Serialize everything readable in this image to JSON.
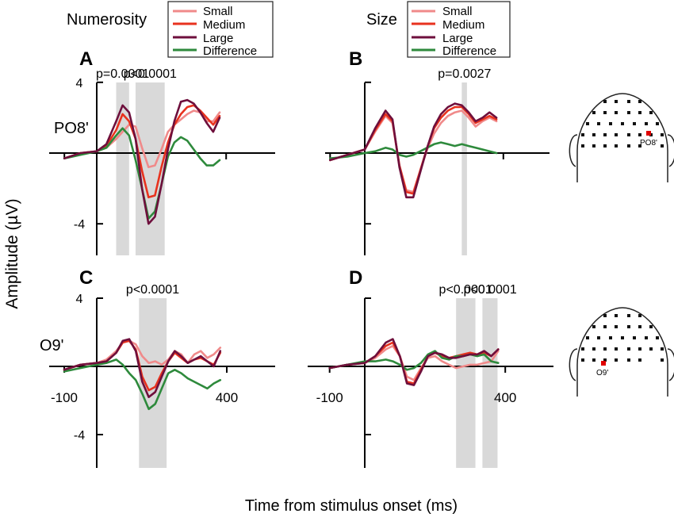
{
  "figure": {
    "ylabel": "Amplitude (µV)",
    "xlabel": "Time from stimulus onset (ms)",
    "row_labels": [
      "PO8'",
      "O9'"
    ],
    "legend_numerosity": {
      "title": "Numerosity",
      "entries": [
        "Small",
        "Medium",
        "Large",
        "Difference"
      ]
    },
    "legend_size": {
      "title": "Size",
      "entries": [
        "Small",
        "Medium",
        "Large",
        "Difference"
      ]
    },
    "colors": {
      "Small": "#f08a8a",
      "Medium": "#e8321e",
      "Large": "#6e0f3c",
      "Difference": "#2e8a3c",
      "shade": "#d9d9d9"
    },
    "head_labels": [
      "PO8'",
      "O9'"
    ]
  },
  "chart_data": [
    {
      "type": "line",
      "panel": "A",
      "electrode": "PO8'",
      "condition": "Numerosity",
      "xlim": [
        -100,
        400
      ],
      "ylim": [
        -6,
        4
      ],
      "yticks": [
        4,
        -4
      ],
      "xticks": [],
      "shaded_intervals": [
        [
          60,
          100
        ],
        [
          120,
          210
        ]
      ],
      "annotations": [
        {
          "text": "p=0.0001",
          "x": 80
        },
        {
          "text": "p<0.0001",
          "x": 165
        }
      ],
      "series": [
        {
          "name": "Small",
          "x": [
            -100,
            -50,
            0,
            30,
            60,
            80,
            100,
            120,
            140,
            160,
            180,
            200,
            220,
            240,
            260,
            280,
            300,
            320,
            340,
            360,
            380
          ],
          "y": [
            -0.3,
            0,
            0.1,
            0.3,
            0.8,
            1.2,
            1.6,
            1.5,
            0.3,
            -0.8,
            -0.7,
            0.2,
            1.2,
            1.6,
            1.9,
            2.2,
            2.4,
            2.3,
            1.8,
            1.8,
            2.3
          ]
        },
        {
          "name": "Medium",
          "x": [
            -100,
            -50,
            0,
            30,
            60,
            80,
            100,
            120,
            140,
            160,
            180,
            200,
            220,
            240,
            260,
            280,
            300,
            320,
            340,
            360,
            380
          ],
          "y": [
            -0.3,
            0,
            0.1,
            0.4,
            1.3,
            2.2,
            1.8,
            0.8,
            -1.0,
            -2.5,
            -2.4,
            -0.8,
            0.6,
            1.6,
            2.2,
            2.6,
            2.7,
            2.4,
            2.0,
            1.6,
            2.1
          ]
        },
        {
          "name": "Large",
          "x": [
            -100,
            -50,
            0,
            30,
            60,
            80,
            100,
            120,
            140,
            160,
            180,
            200,
            220,
            240,
            260,
            280,
            300,
            320,
            340,
            360,
            380
          ],
          "y": [
            -0.3,
            0,
            0.1,
            0.5,
            1.8,
            2.7,
            2.3,
            0.8,
            -2.0,
            -4.0,
            -3.6,
            -1.8,
            0.2,
            1.8,
            2.9,
            3.0,
            2.8,
            2.3,
            1.7,
            1.2,
            2.0
          ]
        },
        {
          "name": "Difference",
          "x": [
            -100,
            -50,
            0,
            30,
            60,
            80,
            100,
            120,
            140,
            160,
            180,
            200,
            220,
            240,
            260,
            280,
            300,
            320,
            340,
            360,
            380
          ],
          "y": [
            -0.3,
            -0.1,
            0.1,
            0.3,
            1.0,
            1.4,
            1.0,
            -0.4,
            -2.0,
            -3.7,
            -3.3,
            -1.8,
            -0.2,
            0.6,
            0.9,
            0.7,
            0.2,
            -0.3,
            -0.7,
            -0.7,
            -0.4
          ]
        }
      ]
    },
    {
      "type": "line",
      "panel": "B",
      "electrode": "PO8'",
      "condition": "Size",
      "xlim": [
        -100,
        400
      ],
      "ylim": [
        -6,
        4
      ],
      "yticks": [],
      "xticks": [],
      "shaded_intervals": [
        [
          280,
          295
        ]
      ],
      "annotations": [
        {
          "text": "p=0.0027",
          "x": 288
        }
      ],
      "series": [
        {
          "name": "Small",
          "x": [
            -100,
            -50,
            0,
            30,
            60,
            80,
            100,
            120,
            140,
            160,
            180,
            200,
            220,
            240,
            260,
            280,
            300,
            320,
            340,
            360,
            380
          ],
          "y": [
            -0.4,
            -0.1,
            0.2,
            1.2,
            2.1,
            1.7,
            -0.7,
            -2.1,
            -2.2,
            -1.0,
            0.2,
            1.1,
            1.7,
            2.1,
            2.3,
            2.4,
            2.0,
            1.5,
            1.8,
            2.0,
            1.8
          ]
        },
        {
          "name": "Medium",
          "x": [
            -100,
            -50,
            0,
            30,
            60,
            80,
            100,
            120,
            140,
            160,
            180,
            200,
            220,
            240,
            260,
            280,
            300,
            320,
            340,
            360,
            380
          ],
          "y": [
            -0.4,
            -0.1,
            0.2,
            1.3,
            2.2,
            1.8,
            -0.7,
            -2.2,
            -2.3,
            -1.0,
            0.3,
            1.4,
            2.0,
            2.4,
            2.6,
            2.6,
            2.2,
            1.7,
            1.9,
            2.1,
            1.9
          ]
        },
        {
          "name": "Large",
          "x": [
            -100,
            -50,
            0,
            30,
            60,
            80,
            100,
            120,
            140,
            160,
            180,
            200,
            220,
            240,
            260,
            280,
            300,
            320,
            340,
            360,
            380
          ],
          "y": [
            -0.4,
            -0.1,
            0.2,
            1.4,
            2.4,
            1.9,
            -0.8,
            -2.5,
            -2.5,
            -1.1,
            0.3,
            1.5,
            2.2,
            2.6,
            2.8,
            2.7,
            2.3,
            1.8,
            2.0,
            2.3,
            2.0
          ]
        },
        {
          "name": "Difference",
          "x": [
            -100,
            -50,
            0,
            30,
            60,
            80,
            100,
            120,
            140,
            160,
            180,
            200,
            220,
            240,
            260,
            280,
            300,
            320,
            340,
            360,
            380
          ],
          "y": [
            -0.3,
            -0.2,
            0,
            0.1,
            0.3,
            0.2,
            -0.1,
            -0.2,
            -0.1,
            0.1,
            0.3,
            0.5,
            0.6,
            0.5,
            0.4,
            0.5,
            0.4,
            0.3,
            0.2,
            0.1,
            0
          ]
        }
      ]
    },
    {
      "type": "line",
      "panel": "C",
      "electrode": "O9'",
      "condition": "Numerosity",
      "xlim": [
        -100,
        400
      ],
      "ylim": [
        -6,
        4
      ],
      "yticks": [
        4,
        -4
      ],
      "xticks": [
        -100,
        400
      ],
      "shaded_intervals": [
        [
          130,
          215
        ]
      ],
      "annotations": [
        {
          "text": "p<0.0001",
          "x": 172
        }
      ],
      "series": [
        {
          "name": "Small",
          "x": [
            -100,
            -50,
            0,
            30,
            60,
            80,
            100,
            120,
            140,
            160,
            180,
            200,
            220,
            240,
            260,
            280,
            300,
            320,
            340,
            360,
            380
          ],
          "y": [
            -0.2,
            0.1,
            0.2,
            0.4,
            0.9,
            1.4,
            1.5,
            1.3,
            0.6,
            0.2,
            0.3,
            0.1,
            0.4,
            0.9,
            0.7,
            0.2,
            0.7,
            0.9,
            0.5,
            0.7,
            1.1
          ]
        },
        {
          "name": "Medium",
          "x": [
            -100,
            -50,
            0,
            30,
            60,
            80,
            100,
            120,
            140,
            160,
            180,
            200,
            220,
            240,
            260,
            280,
            300,
            320,
            340,
            360,
            380
          ],
          "y": [
            -0.2,
            0.1,
            0.2,
            0.3,
            0.8,
            1.4,
            1.5,
            1.0,
            -0.6,
            -1.4,
            -1.2,
            -0.4,
            0.3,
            0.8,
            0.5,
            0.2,
            0.4,
            0.5,
            0.3,
            0.1,
            0.8
          ]
        },
        {
          "name": "Large",
          "x": [
            -100,
            -50,
            0,
            30,
            60,
            80,
            100,
            120,
            140,
            160,
            180,
            200,
            220,
            240,
            260,
            280,
            300,
            320,
            340,
            360,
            380
          ],
          "y": [
            -0.2,
            0.1,
            0.2,
            0.3,
            0.8,
            1.5,
            1.6,
            0.9,
            -0.9,
            -1.8,
            -1.5,
            -0.6,
            0.3,
            0.9,
            0.6,
            0.2,
            0.4,
            0.6,
            0.3,
            0,
            0.9
          ]
        },
        {
          "name": "Difference",
          "x": [
            -100,
            -50,
            0,
            30,
            60,
            80,
            100,
            120,
            140,
            160,
            180,
            200,
            220,
            240,
            260,
            280,
            300,
            320,
            340,
            360,
            380
          ],
          "y": [
            -0.3,
            -0.1,
            0.1,
            0.2,
            0.4,
            0.1,
            -0.4,
            -0.8,
            -1.6,
            -2.5,
            -2.2,
            -1.3,
            -0.4,
            -0.2,
            -0.4,
            -0.7,
            -0.9,
            -1.1,
            -1.3,
            -1.0,
            -0.8
          ]
        }
      ]
    },
    {
      "type": "line",
      "panel": "D",
      "electrode": "O9'",
      "condition": "Size",
      "xlim": [
        -100,
        400
      ],
      "ylim": [
        -6,
        4
      ],
      "yticks": [],
      "xticks": [
        -100,
        400
      ],
      "shaded_intervals": [
        [
          260,
          315
        ],
        [
          335,
          378
        ]
      ],
      "annotations": [
        {
          "text": "p<0.0001",
          "x": 287
        },
        {
          "text": "p<0.0001",
          "x": 357
        }
      ],
      "series": [
        {
          "name": "Small",
          "x": [
            -100,
            -50,
            0,
            30,
            60,
            80,
            100,
            120,
            140,
            160,
            180,
            200,
            220,
            240,
            260,
            280,
            300,
            320,
            340,
            360,
            380
          ],
          "y": [
            -0.1,
            0.1,
            0.2,
            0.5,
            1.0,
            1.2,
            0.6,
            -0.6,
            -0.8,
            -0.1,
            0.5,
            0.6,
            0.3,
            0.1,
            -0.1,
            0,
            0.1,
            0.1,
            0.2,
            0.3,
            0.9
          ]
        },
        {
          "name": "Medium",
          "x": [
            -100,
            -50,
            0,
            30,
            60,
            80,
            100,
            120,
            140,
            160,
            180,
            200,
            220,
            240,
            260,
            280,
            300,
            320,
            340,
            360,
            380
          ],
          "y": [
            -0.1,
            0.1,
            0.2,
            0.6,
            1.2,
            1.4,
            0.6,
            -0.9,
            -1.0,
            -0.2,
            0.6,
            0.8,
            0.6,
            0.5,
            0.6,
            0.7,
            0.8,
            0.7,
            0.8,
            0.6,
            1.0
          ]
        },
        {
          "name": "Large",
          "x": [
            -100,
            -50,
            0,
            30,
            60,
            80,
            100,
            120,
            140,
            160,
            180,
            200,
            220,
            240,
            260,
            280,
            300,
            320,
            340,
            360,
            380
          ],
          "y": [
            -0.1,
            0.1,
            0.2,
            0.6,
            1.4,
            1.6,
            0.6,
            -1.0,
            -1.1,
            -0.3,
            0.6,
            0.8,
            0.7,
            0.5,
            0.5,
            0.6,
            0.7,
            0.7,
            0.9,
            0.6,
            1.0
          ]
        },
        {
          "name": "Difference",
          "x": [
            -100,
            -50,
            0,
            30,
            60,
            80,
            100,
            120,
            140,
            160,
            180,
            200,
            220,
            240,
            260,
            280,
            300,
            320,
            340,
            360,
            380
          ],
          "y": [
            -0.1,
            0.1,
            0.3,
            0.3,
            0.4,
            0.3,
            0.1,
            -0.2,
            -0.1,
            0.2,
            0.7,
            0.9,
            0.5,
            0.4,
            0.6,
            0.6,
            0.7,
            0.6,
            0.7,
            0.3,
            0.2
          ]
        }
      ]
    }
  ]
}
